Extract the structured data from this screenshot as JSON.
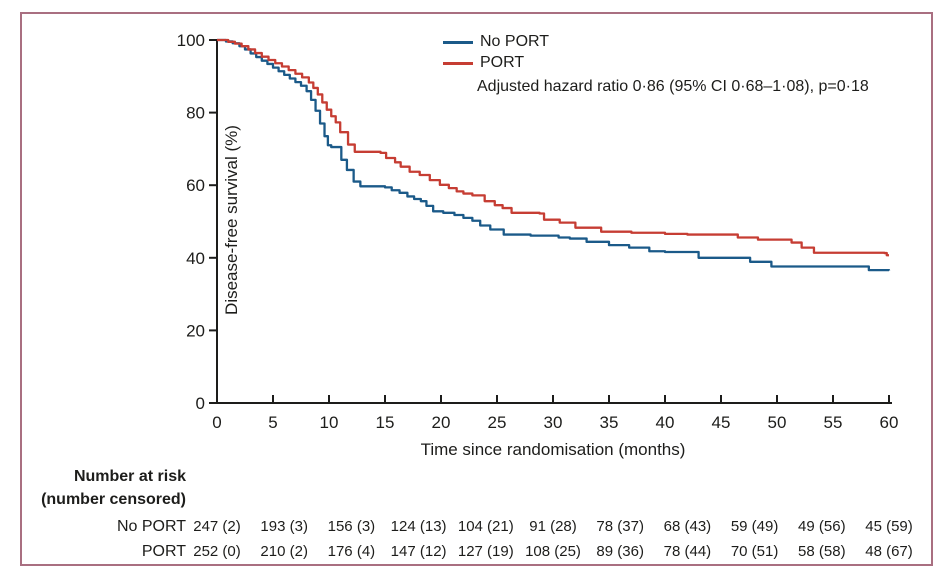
{
  "figure": {
    "border_color": "#a96f81",
    "background": "#ffffff",
    "text_color": "#1d1d1b",
    "axis_color": "#1d1d1b"
  },
  "chart_data": {
    "type": "line",
    "subtype": "kaplan-meier-step",
    "title": "",
    "xlabel": "Time since randomisation (months)",
    "ylabel": "Disease-free survival (%)",
    "xlim": [
      0,
      60
    ],
    "ylim": [
      0,
      100
    ],
    "xticks": [
      0,
      5,
      10,
      15,
      20,
      25,
      30,
      35,
      40,
      45,
      50,
      55,
      60
    ],
    "yticks": [
      0,
      20,
      40,
      60,
      80,
      100
    ],
    "grid": false,
    "legend_position": "top-center",
    "annotation": "Adjusted hazard ratio 0·86 (95% CI 0·68–1·08), p=0·18",
    "series": [
      {
        "name": "No PORT",
        "color": "#1b5a89",
        "steps": [
          [
            0,
            100
          ],
          [
            0.8,
            99.6
          ],
          [
            1.4,
            99.1
          ],
          [
            2,
            98.3
          ],
          [
            2.5,
            97.4
          ],
          [
            3,
            96.3
          ],
          [
            3.5,
            95.3
          ],
          [
            4,
            94.3
          ],
          [
            4.5,
            93.4
          ],
          [
            5,
            92.4
          ],
          [
            5.5,
            91.4
          ],
          [
            6,
            90.4
          ],
          [
            6.5,
            89.4
          ],
          [
            7,
            88.4
          ],
          [
            7.5,
            87.4
          ],
          [
            8,
            85.9
          ],
          [
            8.4,
            83.5
          ],
          [
            8.8,
            80.5
          ],
          [
            9.2,
            77
          ],
          [
            9.6,
            73.5
          ],
          [
            9.9,
            71
          ],
          [
            10.2,
            70.5
          ],
          [
            11.1,
            67
          ],
          [
            11.6,
            64.2
          ],
          [
            12.2,
            61
          ],
          [
            12.8,
            59.7
          ],
          [
            15,
            59.4
          ],
          [
            15.6,
            58.6
          ],
          [
            16.3,
            57.9
          ],
          [
            17,
            56.9
          ],
          [
            17.6,
            56.2
          ],
          [
            18.2,
            55.6
          ],
          [
            18.7,
            54.3
          ],
          [
            19.3,
            52.8
          ],
          [
            20.2,
            52.4
          ],
          [
            21.2,
            51.8
          ],
          [
            22,
            51
          ],
          [
            22.8,
            50.2
          ],
          [
            23.5,
            48.9
          ],
          [
            24.4,
            47.8
          ],
          [
            25.6,
            46.4
          ],
          [
            28,
            46.1
          ],
          [
            30.5,
            45.6
          ],
          [
            31.5,
            45.3
          ],
          [
            33,
            44.4
          ],
          [
            35,
            43.5
          ],
          [
            36.8,
            42.8
          ],
          [
            38.6,
            41.8
          ],
          [
            40,
            41.6
          ],
          [
            43,
            40
          ],
          [
            47.6,
            38.9
          ],
          [
            49.5,
            37.6
          ],
          [
            58.2,
            36.6
          ],
          [
            60,
            36.5
          ]
        ]
      },
      {
        "name": "PORT",
        "color": "#c63d33",
        "steps": [
          [
            0,
            100
          ],
          [
            1,
            99.5
          ],
          [
            1.6,
            99
          ],
          [
            2.2,
            98.3
          ],
          [
            2.8,
            97.4
          ],
          [
            3.4,
            96.4
          ],
          [
            4,
            95.4
          ],
          [
            4.6,
            94.5
          ],
          [
            5.2,
            93.6
          ],
          [
            5.8,
            92.7
          ],
          [
            6.4,
            91.7
          ],
          [
            7,
            90.7
          ],
          [
            7.6,
            89.7
          ],
          [
            8.2,
            88.3
          ],
          [
            8.6,
            86.8
          ],
          [
            9,
            85
          ],
          [
            9.4,
            82.8
          ],
          [
            9.8,
            80.8
          ],
          [
            10.2,
            79
          ],
          [
            10.6,
            77.3
          ],
          [
            11,
            74.6
          ],
          [
            11.7,
            71.2
          ],
          [
            12.3,
            69.2
          ],
          [
            14.6,
            68.9
          ],
          [
            15.1,
            67.5
          ],
          [
            15.9,
            66.3
          ],
          [
            16.4,
            65.1
          ],
          [
            17.2,
            63.7
          ],
          [
            18.1,
            62.8
          ],
          [
            19,
            61.4
          ],
          [
            19.9,
            60.1
          ],
          [
            20.7,
            59.2
          ],
          [
            21.4,
            58.3
          ],
          [
            22,
            57.7
          ],
          [
            22.8,
            57.2
          ],
          [
            23.9,
            55.6
          ],
          [
            24.8,
            54.5
          ],
          [
            25.5,
            53.7
          ],
          [
            26.3,
            52.4
          ],
          [
            28.8,
            52.2
          ],
          [
            29.2,
            50.5
          ],
          [
            30.6,
            49.7
          ],
          [
            32,
            48.3
          ],
          [
            34.3,
            47.2
          ],
          [
            37,
            46.9
          ],
          [
            40,
            46.6
          ],
          [
            42,
            46.4
          ],
          [
            46.5,
            45.6
          ],
          [
            48.3,
            45
          ],
          [
            51.3,
            44.2
          ],
          [
            52.2,
            42.8
          ],
          [
            53.3,
            41.4
          ],
          [
            59.6,
            41.3
          ],
          [
            59.8,
            40.7
          ],
          [
            60,
            40.7
          ]
        ]
      }
    ]
  },
  "risk_table": {
    "header_line1": "Number at risk",
    "header_line2": "(number censored)",
    "times": [
      0,
      6,
      12,
      18,
      24,
      30,
      36,
      42,
      48,
      54,
      60
    ],
    "rows": [
      {
        "label": "No PORT",
        "values": [
          "247 (2)",
          "193 (3)",
          "156 (3)",
          "124 (13)",
          "104 (21)",
          "91 (28)",
          "78 (37)",
          "68 (43)",
          "59 (49)",
          "49 (56)",
          "45 (59)"
        ]
      },
      {
        "label": "PORT",
        "values": [
          "252 (0)",
          "210 (2)",
          "176 (4)",
          "147 (12)",
          "127 (19)",
          "108 (25)",
          "89 (36)",
          "78 (44)",
          "70 (51)",
          "58 (58)",
          "48 (67)"
        ]
      }
    ]
  }
}
